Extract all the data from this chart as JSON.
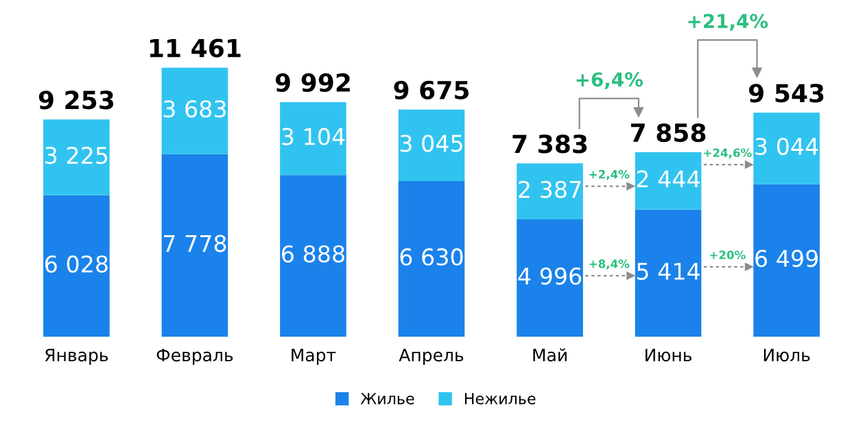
{
  "chart_data": {
    "type": "bar",
    "stacked": true,
    "categories": [
      "Январь",
      "Февраль",
      "Март",
      "Апрель",
      "Май",
      "Июнь",
      "Июль"
    ],
    "series": [
      {
        "name": "Жилье",
        "color": "#1a82ea",
        "values": [
          6028,
          7778,
          6888,
          6630,
          4996,
          5414,
          6499
        ],
        "value_labels": [
          "6 028",
          "7 778",
          "6 888",
          "6 630",
          "4 996",
          "5 414",
          "6 499"
        ]
      },
      {
        "name": "Нежилье",
        "color": "#31c3ef",
        "values": [
          3225,
          3683,
          3104,
          3045,
          2387,
          2444,
          3044
        ],
        "value_labels": [
          "3 225",
          "3 683",
          "3 104",
          "3 045",
          "2 387",
          "2 444",
          "3 044"
        ]
      }
    ],
    "totals": [
      "9 253",
      "11 461",
      "9 992",
      "9 675",
      "7 383",
      "7 858",
      "9 543"
    ],
    "annotations": [
      "+6,4%",
      "+21,4%",
      "+2,4%",
      "+8,4%",
      "+24,6%",
      "+20%"
    ],
    "legend": "bottom",
    "grid": false
  }
}
